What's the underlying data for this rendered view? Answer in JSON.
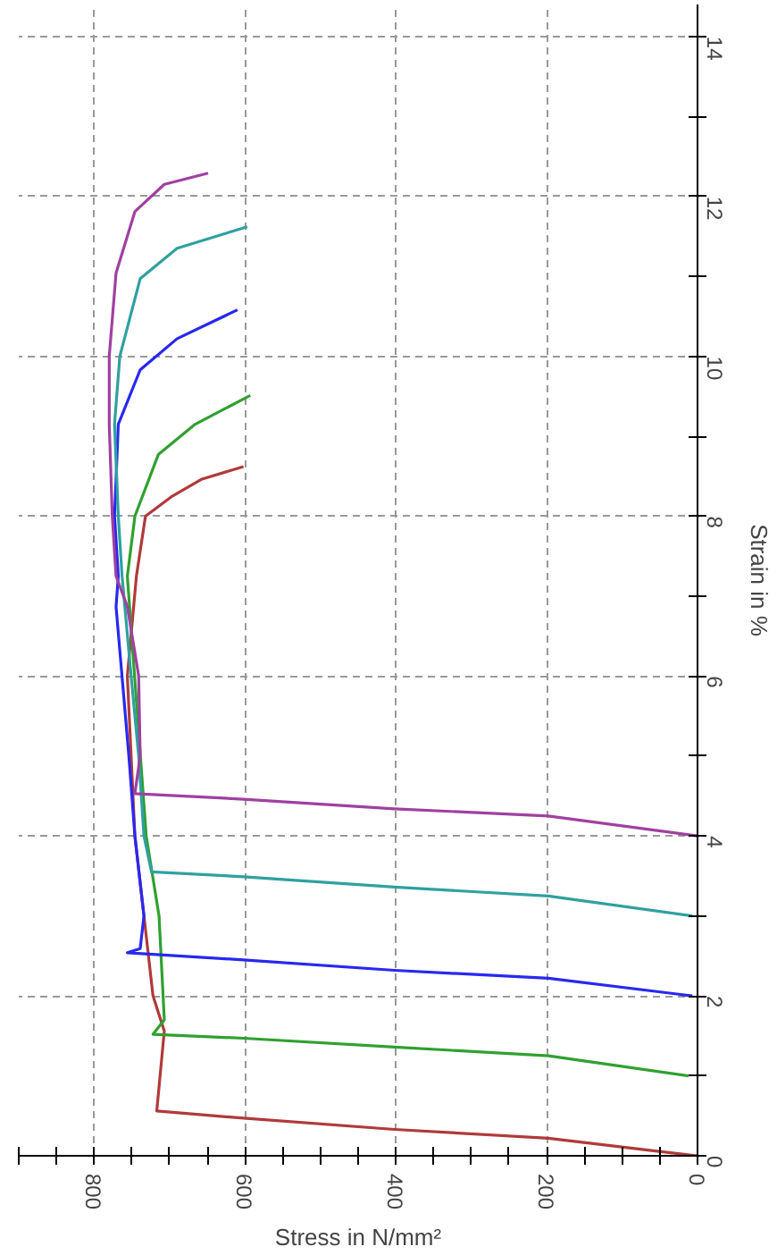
{
  "chart_data": {
    "type": "line",
    "xlabel": "Stress in N/mm²",
    "ylabel": "Strain in %",
    "xlim": [
      900,
      0
    ],
    "ylim": [
      0,
      14.4
    ],
    "xticks": [
      {
        "value": 900,
        "label": null
      },
      {
        "value": 850,
        "label": null
      },
      800,
      {
        "value": 750,
        "label": null
      },
      {
        "value": 700,
        "label": null
      },
      {
        "value": 650,
        "label": null
      },
      600,
      {
        "value": 550,
        "label": null
      },
      {
        "value": 500,
        "label": null
      },
      {
        "value": 450,
        "label": null
      },
      400,
      {
        "value": 350,
        "label": null
      },
      {
        "value": 300,
        "label": null
      },
      {
        "value": 250,
        "label": null
      },
      200,
      {
        "value": 150,
        "label": null
      },
      {
        "value": 100,
        "label": null
      },
      {
        "value": 50,
        "label": null
      },
      0
    ],
    "yticks": [
      0,
      {
        "value": 1,
        "label": null
      },
      2,
      {
        "value": 3,
        "label": null
      },
      4,
      {
        "value": 5,
        "label": null
      },
      6,
      {
        "value": 7,
        "label": null
      },
      8,
      {
        "value": 9,
        "label": null
      },
      10,
      {
        "value": 11,
        "label": null
      },
      12,
      {
        "value": 13,
        "label": null
      },
      14
    ],
    "grid": true,
    "line_style": "solid",
    "series": [
      {
        "color": "#b03a3a",
        "x": [
          0,
          56,
          198,
          402,
          602,
          717,
          707,
          722,
          746,
          756,
          744,
          732,
          698,
          658,
          602
        ],
        "values": [
          0,
          0.06,
          0.22,
          0.33,
          0.47,
          0.56,
          1.56,
          2.0,
          4.0,
          6.0,
          7.25,
          8.0,
          8.24,
          8.46,
          8.62
        ]
      },
      {
        "color": "#30a030",
        "x": [
          12,
          198,
          402,
          602,
          722,
          707,
          714,
          731,
          756,
          746,
          715,
          666,
          593
        ],
        "values": [
          1.0,
          1.25,
          1.36,
          1.47,
          1.52,
          1.7,
          3.0,
          4.0,
          7.25,
          8.0,
          8.77,
          9.15,
          9.51
        ]
      },
      {
        "color": "#2828f0",
        "x": [
          7,
          198,
          402,
          602,
          756,
          739,
          734,
          746,
          754,
          771,
          768,
          773,
          768,
          739,
          690,
          610
        ],
        "values": [
          2.0,
          2.22,
          2.32,
          2.45,
          2.54,
          2.59,
          3.0,
          4.0,
          5.0,
          6.87,
          7.25,
          8.0,
          9.15,
          9.83,
          10.22,
          10.58
        ]
      },
      {
        "color": "#30a0a0",
        "x": [
          7,
          198,
          402,
          602,
          724,
          734,
          741,
          751,
          763,
          768,
          773,
          766,
          739,
          690,
          597
        ],
        "values": [
          3.0,
          3.25,
          3.36,
          3.49,
          3.55,
          4.0,
          5.0,
          6.0,
          7.25,
          8.0,
          9.15,
          10.0,
          10.97,
          11.35,
          11.62
        ]
      },
      {
        "color": "#a040a0",
        "x": [
          0,
          198,
          402,
          602,
          746,
          739,
          741,
          756,
          771,
          776,
          780,
          780,
          771,
          746,
          707,
          649
        ],
        "values": [
          4.0,
          4.25,
          4.34,
          4.46,
          4.53,
          5.0,
          6.0,
          6.87,
          7.25,
          8.0,
          9.15,
          10.0,
          11.04,
          11.81,
          12.15,
          12.29
        ]
      }
    ]
  }
}
